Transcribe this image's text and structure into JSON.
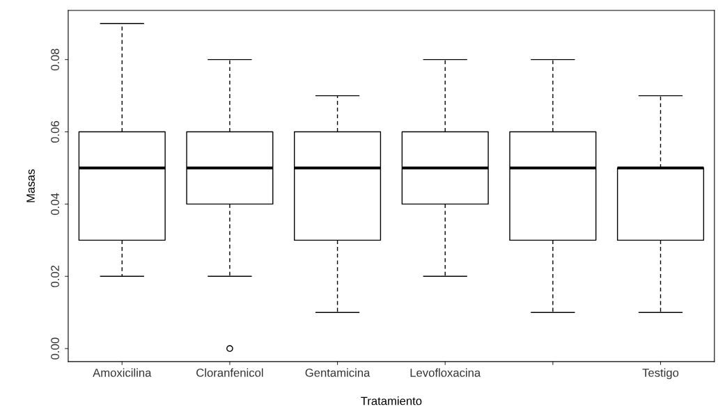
{
  "chart_data": {
    "type": "box",
    "xlabel": "Tratamiento",
    "ylabel": "Masas",
    "categories": [
      "Amoxicilina",
      "Cloranfenicol",
      "Gentamicina",
      "Levofloxacina",
      null,
      "Testigo"
    ],
    "boxes": [
      {
        "low": 0.02,
        "q1": 0.03,
        "median": 0.05,
        "q3": 0.06,
        "high": 0.09
      },
      {
        "low": 0.02,
        "q1": 0.04,
        "median": 0.05,
        "q3": 0.06,
        "high": 0.08,
        "outliers": [
          0.0
        ]
      },
      {
        "low": 0.01,
        "q1": 0.03,
        "median": 0.05,
        "q3": 0.06,
        "high": 0.07
      },
      {
        "low": 0.02,
        "q1": 0.04,
        "median": 0.05,
        "q3": 0.06,
        "high": 0.08
      },
      {
        "low": 0.01,
        "q1": 0.03,
        "median": 0.05,
        "q3": 0.06,
        "high": 0.08
      },
      {
        "low": 0.01,
        "q1": 0.03,
        "median": 0.05,
        "q3": 0.05,
        "high": 0.07
      }
    ],
    "ylim": [
      -0.0036,
      0.0936
    ],
    "yticks": [
      {
        "value": 0,
        "label": "0.00"
      },
      {
        "value": 0.02,
        "label": "0.02"
      },
      {
        "value": 0.04,
        "label": "0.04"
      },
      {
        "value": 0.06,
        "label": "0.06"
      },
      {
        "value": 0.08,
        "label": "0.08"
      }
    ],
    "grid": false
  }
}
